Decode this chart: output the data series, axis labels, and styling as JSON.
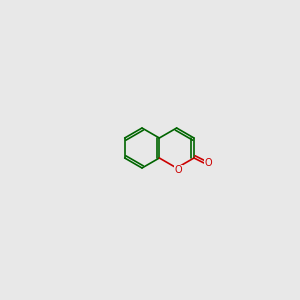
{
  "bg_color": "#e8e8e8",
  "bond_color": "#006400",
  "o_color": "#cc0000",
  "n_color": "#0000cc",
  "figsize": [
    3.0,
    3.0
  ],
  "dpi": 100
}
